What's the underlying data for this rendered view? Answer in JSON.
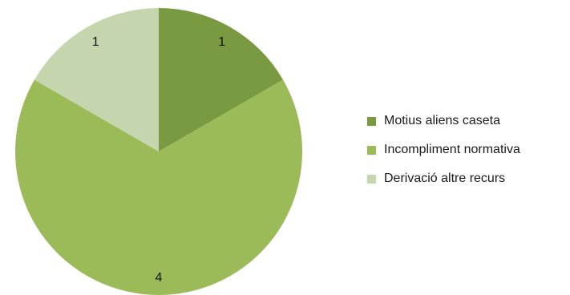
{
  "chart_data": {
    "type": "pie",
    "categories": [
      "Motius aliens caseta",
      "Incompliment normativa",
      "Derivació altre recurs"
    ],
    "values": [
      1,
      4,
      1
    ],
    "data_labels": [
      "1",
      "4",
      "1"
    ],
    "colors": [
      "#7a9a42",
      "#9bbb59",
      "#c5d5ae"
    ],
    "start_angle": "12 o'clock",
    "direction": "clockwise",
    "legend": "right"
  }
}
